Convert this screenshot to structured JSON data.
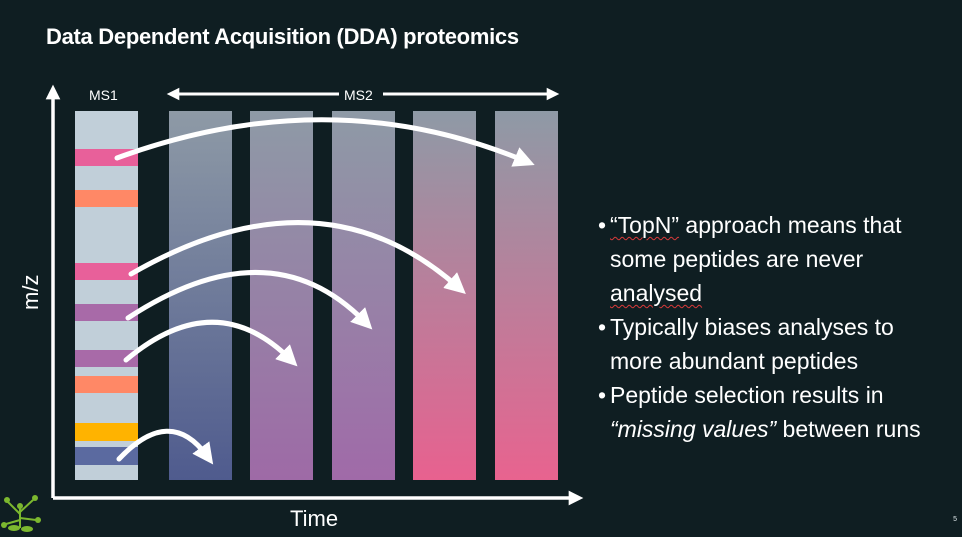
{
  "slide": {
    "title": "Data Dependent Acquisition (DDA) proteomics",
    "page_number": "5"
  },
  "diagram": {
    "ms1_label": "MS1",
    "ms2_label": "MS2",
    "y_axis_label": "m/z",
    "x_axis_label": "Time",
    "ms1_band_colors": [
      "#e8609a",
      "#ff8866",
      "#e8609a",
      "#a86aa8",
      "#a86aa8",
      "#ff8866",
      "#ffb300",
      "#5b6aa0"
    ],
    "ms2_column_count": 5
  },
  "bullets": [
    {
      "parts": [
        {
          "text": "“TopN”",
          "style": "squiggle"
        },
        {
          "text": "  approach means that some peptides are never ",
          "style": "normal"
        },
        {
          "text": "analysed",
          "style": "squiggle"
        }
      ]
    },
    {
      "parts": [
        {
          "text": "Typically biases analyses to more abundant peptides",
          "style": "normal"
        }
      ]
    },
    {
      "parts": [
        {
          "text": "Peptide selection results in ",
          "style": "normal"
        },
        {
          "text": "“missing values”",
          "style": "em"
        },
        {
          "text": " between runs",
          "style": "normal"
        }
      ]
    }
  ]
}
